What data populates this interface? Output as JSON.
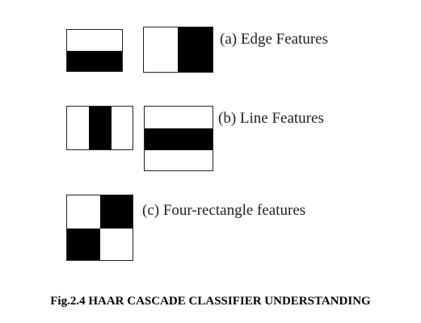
{
  "diagram": {
    "labels": {
      "edge": "(a) Edge Features",
      "line": "(b) Line Features",
      "four": "(c) Four-rectangle features"
    },
    "caption": "Fig.2.4 HAAR CASCADE CLASSIFIER UNDERSTANDING"
  }
}
